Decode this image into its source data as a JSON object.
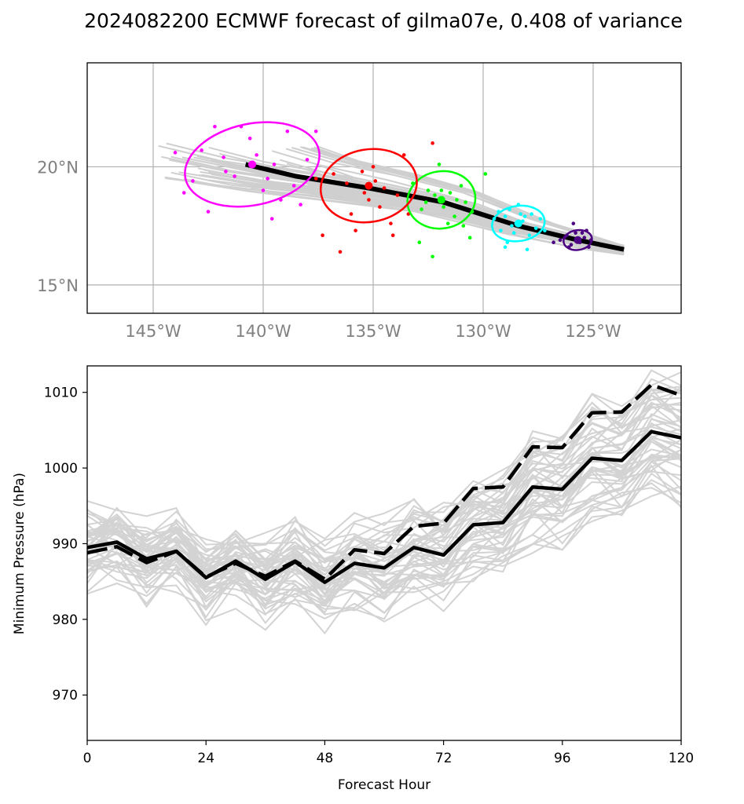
{
  "title": "2024082200 ECMWF forecast of gilma07e, 0.408 of variance",
  "chart_data": [
    {
      "type": "scatter",
      "subtype": "track-map",
      "xlim": [
        -148,
        -121
      ],
      "ylim": [
        13.8,
        24.4
      ],
      "xticks": [
        -145,
        -140,
        -135,
        -130,
        -125
      ],
      "xticklabels": [
        "145°W",
        "140°W",
        "135°W",
        "130°W",
        "125°W"
      ],
      "yticks": [
        15,
        20
      ],
      "yticklabels": [
        "15°N",
        "20°N"
      ],
      "grid": true,
      "mean_track": [
        [
          -123.6,
          16.5
        ],
        [
          -125.7,
          16.9
        ],
        [
          -128.4,
          17.5
        ],
        [
          -131.8,
          18.5
        ],
        [
          -135.2,
          19.1
        ],
        [
          -138.5,
          19.6
        ],
        [
          -140.8,
          20.1
        ]
      ],
      "ellipses": [
        {
          "color": "#4b0082",
          "center": [
            -125.7,
            16.9
          ],
          "rx": 0.65,
          "ry": 0.45,
          "angle": -8
        },
        {
          "color": "#00ffff",
          "center": [
            -128.4,
            17.6
          ],
          "rx": 1.2,
          "ry": 0.8,
          "angle": -8
        },
        {
          "color": "#00ff00",
          "center": [
            -131.9,
            18.6
          ],
          "rx": 1.55,
          "ry": 1.3,
          "angle": -10
        },
        {
          "color": "#ff0000",
          "center": [
            -135.2,
            19.2
          ],
          "rx": 2.2,
          "ry": 1.65,
          "angle": -10
        },
        {
          "color": "#ff00ff",
          "center": [
            -140.5,
            20.1
          ],
          "rx": 3.1,
          "ry": 1.85,
          "angle": -12
        }
      ],
      "point_groups": [
        {
          "color": "#4b0082",
          "points": [
            [
              -126.5,
              16.9
            ],
            [
              -126.2,
              17.1
            ],
            [
              -126.0,
              16.7
            ],
            [
              -125.8,
              17.2
            ],
            [
              -125.6,
              16.8
            ],
            [
              -125.4,
              17.0
            ],
            [
              -125.2,
              16.6
            ],
            [
              -125.9,
              17.6
            ],
            [
              -126.3,
              17.0
            ],
            [
              -125.5,
              17.2
            ],
            [
              -125.1,
              16.9
            ],
            [
              -126.8,
              16.8
            ],
            [
              -126.1,
              16.6
            ],
            [
              -125.7,
              16.9
            ],
            [
              -125.3,
              17.3
            ]
          ]
        },
        {
          "color": "#00ffff",
          "points": [
            [
              -129.5,
              17.8
            ],
            [
              -129.2,
              17.3
            ],
            [
              -129.0,
              17.9
            ],
            [
              -128.8,
              18.2
            ],
            [
              -128.6,
              17.2
            ],
            [
              -128.4,
              18.4
            ],
            [
              -128.2,
              17.7
            ],
            [
              -128.0,
              16.5
            ],
            [
              -127.8,
              18.0
            ],
            [
              -127.6,
              17.4
            ],
            [
              -127.4,
              17.8
            ],
            [
              -129.0,
              16.6
            ],
            [
              -128.5,
              17.6
            ],
            [
              -128.3,
              18.0
            ],
            [
              -127.9,
              17.1
            ],
            [
              -128.7,
              17.5
            ],
            [
              -129.3,
              18.1
            ],
            [
              -128.1,
              17.9
            ],
            [
              -127.2,
              17.3
            ],
            [
              -128.9,
              16.8
            ]
          ]
        },
        {
          "color": "#00ff00",
          "points": [
            [
              -133.2,
              19.3
            ],
            [
              -132.8,
              18.2
            ],
            [
              -132.5,
              19.0
            ],
            [
              -132.2,
              18.8
            ],
            [
              -132.0,
              20.1
            ],
            [
              -131.8,
              18.3
            ],
            [
              -131.5,
              18.9
            ],
            [
              -131.3,
              17.9
            ],
            [
              -131.0,
              19.2
            ],
            [
              -130.8,
              18.5
            ],
            [
              -130.5,
              18.1
            ],
            [
              -129.9,
              19.7
            ],
            [
              -132.3,
              16.2
            ],
            [
              -132.9,
              16.8
            ],
            [
              -131.6,
              17.6
            ],
            [
              -130.6,
              17.0
            ],
            [
              -131.2,
              18.6
            ],
            [
              -132.6,
              18.5
            ],
            [
              -131.9,
              19.0
            ],
            [
              -130.9,
              17.5
            ]
          ]
        },
        {
          "color": "#ff0000",
          "points": [
            [
              -137.6,
              19.5
            ],
            [
              -137.3,
              17.1
            ],
            [
              -136.8,
              19.7
            ],
            [
              -136.5,
              16.4
            ],
            [
              -136.2,
              19.3
            ],
            [
              -135.8,
              17.3
            ],
            [
              -135.5,
              19.8
            ],
            [
              -135.2,
              18.6
            ],
            [
              -135.0,
              20.0
            ],
            [
              -134.7,
              18.3
            ],
            [
              -134.5,
              19.1
            ],
            [
              -134.2,
              17.6
            ],
            [
              -133.9,
              18.8
            ],
            [
              -133.6,
              20.5
            ],
            [
              -133.4,
              18.0
            ],
            [
              -132.3,
              21.0
            ],
            [
              -134.1,
              17.1
            ],
            [
              -136.0,
              18.0
            ],
            [
              -135.4,
              18.9
            ],
            [
              -134.9,
              19.4
            ]
          ]
        },
        {
          "color": "#ff00ff",
          "points": [
            [
              -144.0,
              20.6
            ],
            [
              -143.6,
              18.9
            ],
            [
              -143.2,
              19.4
            ],
            [
              -142.8,
              20.7
            ],
            [
              -142.5,
              18.1
            ],
            [
              -142.2,
              21.7
            ],
            [
              -141.8,
              20.4
            ],
            [
              -141.3,
              19.6
            ],
            [
              -141.0,
              21.7
            ],
            [
              -140.6,
              21.2
            ],
            [
              -140.3,
              20.5
            ],
            [
              -139.8,
              19.5
            ],
            [
              -139.5,
              20.1
            ],
            [
              -139.2,
              18.6
            ],
            [
              -138.9,
              21.5
            ],
            [
              -138.6,
              19.2
            ],
            [
              -138.3,
              18.4
            ],
            [
              -137.6,
              21.5
            ],
            [
              -139.6,
              17.8
            ],
            [
              -141.7,
              19.8
            ],
            [
              -140.0,
              19.0
            ],
            [
              -138.0,
              20.3
            ]
          ]
        }
      ]
    },
    {
      "type": "line",
      "xlabel": "Forecast Hour",
      "ylabel": "Minimum Pressure (hPa)",
      "xlim": [
        0,
        120
      ],
      "ylim": [
        964,
        1013.5
      ],
      "xticks": [
        0,
        24,
        48,
        72,
        96,
        120
      ],
      "yticks": [
        970,
        980,
        990,
        1000,
        1010
      ],
      "x": [
        0,
        6,
        12,
        18,
        24,
        30,
        36,
        42,
        48,
        54,
        60,
        66,
        72,
        78,
        84,
        90,
        96,
        102,
        108,
        114,
        120
      ],
      "series": [
        {
          "style": "solid",
          "color": "#000000",
          "values": [
            989.5,
            990.2,
            988.0,
            989.0,
            985.5,
            987.7,
            985.3,
            987.6,
            984.9,
            987.4,
            986.8,
            989.5,
            988.5,
            992.5,
            992.8,
            997.5,
            997.2,
            1001.3,
            1001.0,
            1004.8,
            1004.0
          ]
        },
        {
          "style": "dashed",
          "color": "#000000",
          "values": [
            988.8,
            989.6,
            987.5,
            989.0,
            985.6,
            987.4,
            985.7,
            987.7,
            985.3,
            989.2,
            988.7,
            992.3,
            992.7,
            997.3,
            997.5,
            1002.8,
            1002.7,
            1007.3,
            1007.4,
            1011.0,
            1009.6
          ]
        }
      ]
    }
  ]
}
